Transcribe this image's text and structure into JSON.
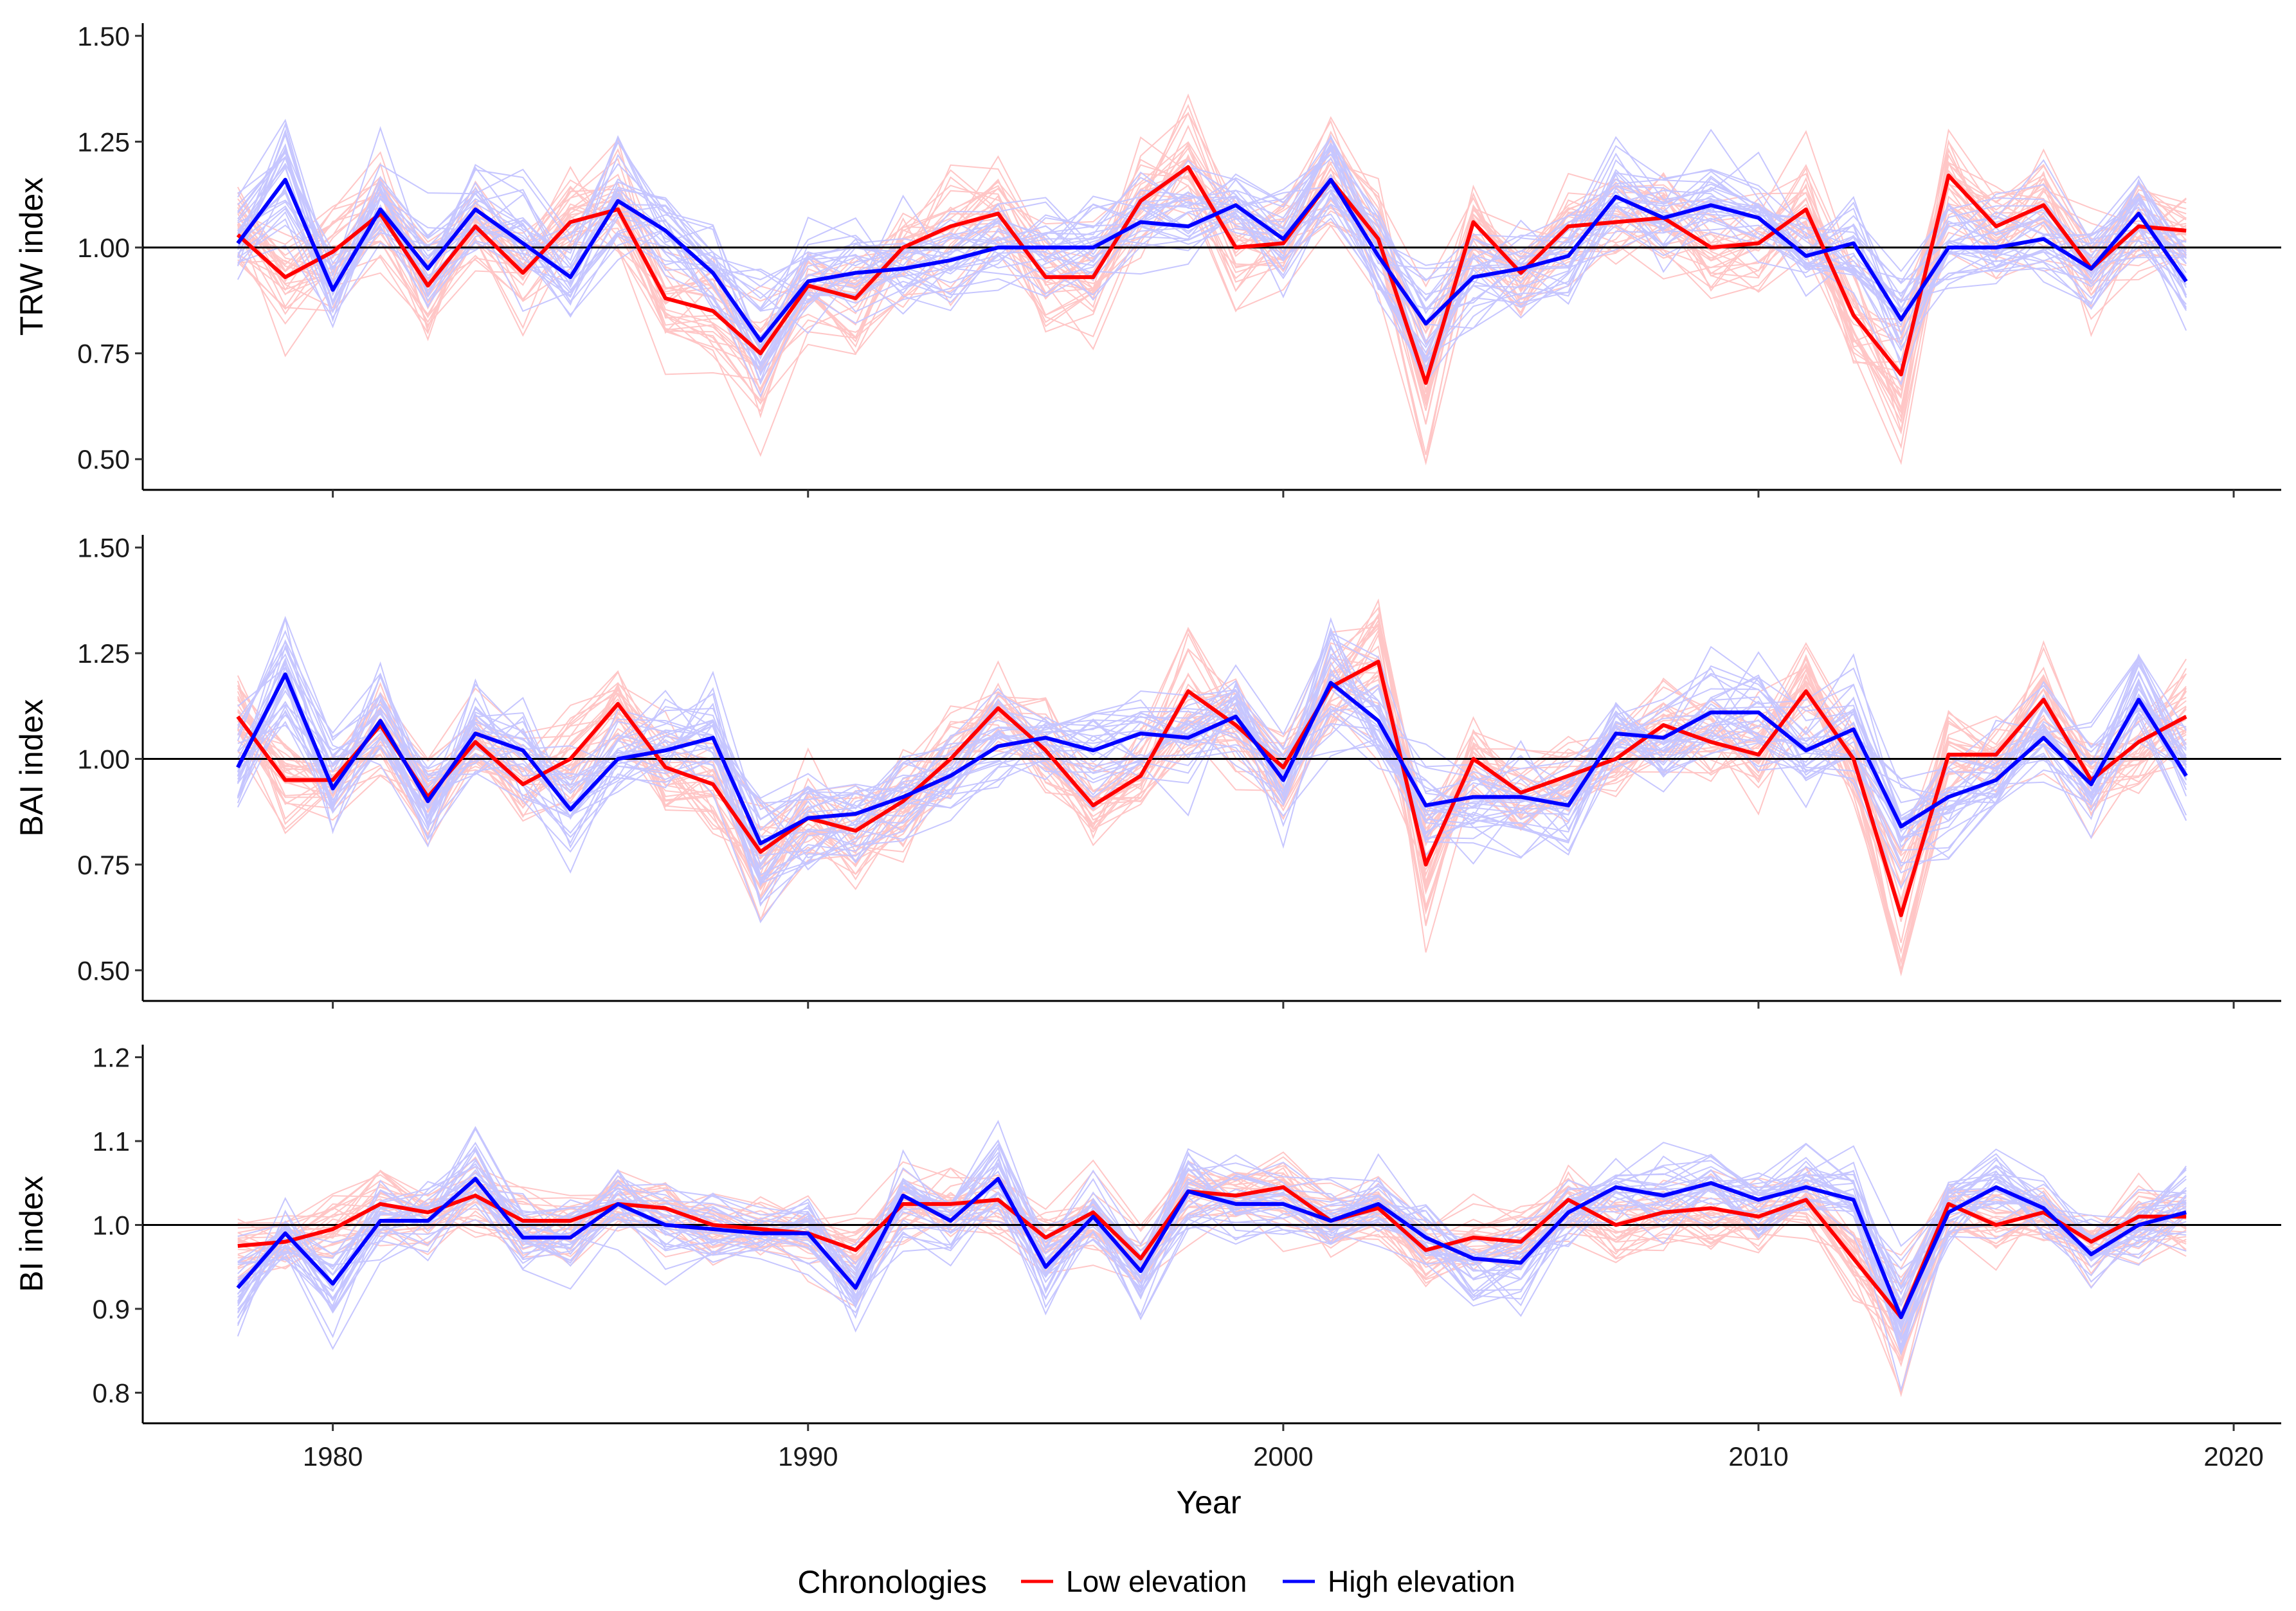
{
  "chart_data": {
    "type": "line",
    "xlabel": "Year",
    "x_ticks": [
      1980,
      1990,
      2000,
      2010,
      2020
    ],
    "xlim": [
      1976,
      2021
    ],
    "legend": {
      "title": "Chronologies",
      "position": "bottom",
      "entries": [
        {
          "name": "Low elevation",
          "color": "#ff0000"
        },
        {
          "name": "High elevation",
          "color": "#0000ff"
        }
      ]
    },
    "reference_line": 1.0,
    "years": [
      1978,
      1979,
      1980,
      1981,
      1982,
      1983,
      1984,
      1985,
      1986,
      1987,
      1988,
      1989,
      1990,
      1991,
      1992,
      1993,
      1994,
      1995,
      1996,
      1997,
      1998,
      1999,
      2000,
      2001,
      2002,
      2003,
      2004,
      2005,
      2006,
      2007,
      2008,
      2009,
      2010,
      2011,
      2012,
      2013,
      2014,
      2015,
      2016,
      2017,
      2018,
      2019
    ],
    "panels": [
      {
        "ylabel": "TRW index",
        "ylim": [
          0.47,
          1.53
        ],
        "y_ticks": [
          "0.50",
          "0.75",
          "1.00",
          "1.25",
          "1.50"
        ],
        "series": [
          {
            "name": "Low elevation",
            "color": "#ff0000",
            "values": [
              1.03,
              0.93,
              0.99,
              1.08,
              0.91,
              1.05,
              0.94,
              1.06,
              1.09,
              0.88,
              0.85,
              0.75,
              0.91,
              0.88,
              1.0,
              1.05,
              1.08,
              0.93,
              0.93,
              1.11,
              1.19,
              1.0,
              1.01,
              1.16,
              1.02,
              0.68,
              1.06,
              0.94,
              1.05,
              1.06,
              1.07,
              1.0,
              1.01,
              1.09,
              0.84,
              0.7,
              1.17,
              1.05,
              1.1,
              0.95,
              1.05,
              1.04
            ]
          },
          {
            "name": "High elevation",
            "color": "#0000ff",
            "values": [
              1.01,
              1.16,
              0.9,
              1.09,
              0.95,
              1.09,
              1.01,
              0.93,
              1.11,
              1.04,
              0.94,
              0.78,
              0.92,
              0.94,
              0.95,
              0.97,
              1.0,
              1.0,
              1.0,
              1.06,
              1.05,
              1.1,
              1.02,
              1.16,
              0.98,
              0.82,
              0.93,
              0.95,
              0.98,
              1.12,
              1.07,
              1.1,
              1.07,
              0.98,
              1.01,
              0.83,
              1.0,
              1.0,
              1.02,
              0.95,
              1.08,
              0.92
            ]
          }
        ]
      },
      {
        "ylabel": "BAI index",
        "ylim": [
          0.47,
          1.53
        ],
        "y_ticks": [
          "0.50",
          "0.75",
          "1.00",
          "1.25",
          "1.50"
        ],
        "series": [
          {
            "name": "Low elevation",
            "color": "#ff0000",
            "values": [
              1.1,
              0.95,
              0.95,
              1.08,
              0.91,
              1.04,
              0.94,
              1.0,
              1.13,
              0.98,
              0.94,
              0.78,
              0.86,
              0.83,
              0.9,
              1.0,
              1.12,
              1.02,
              0.89,
              0.96,
              1.16,
              1.08,
              0.98,
              1.17,
              1.23,
              0.75,
              1.0,
              0.92,
              0.96,
              1.0,
              1.08,
              1.04,
              1.01,
              1.16,
              1.0,
              0.63,
              1.01,
              1.01,
              1.14,
              0.95,
              1.04,
              1.1
            ]
          },
          {
            "name": "High elevation",
            "color": "#0000ff",
            "values": [
              0.98,
              1.2,
              0.93,
              1.09,
              0.9,
              1.06,
              1.02,
              0.88,
              1.0,
              1.02,
              1.05,
              0.8,
              0.86,
              0.87,
              0.91,
              0.96,
              1.03,
              1.05,
              1.02,
              1.06,
              1.05,
              1.1,
              0.95,
              1.18,
              1.09,
              0.89,
              0.91,
              0.91,
              0.89,
              1.06,
              1.05,
              1.11,
              1.11,
              1.02,
              1.07,
              0.84,
              0.91,
              0.95,
              1.05,
              0.94,
              1.14,
              0.96
            ]
          }
        ]
      },
      {
        "ylabel": "BI index",
        "ylim": [
          0.785,
          1.215
        ],
        "y_ticks": [
          "0.8",
          "0.9",
          "1.0",
          "1.1",
          "1.2"
        ],
        "series": [
          {
            "name": "Low elevation",
            "color": "#ff0000",
            "values": [
              0.975,
              0.98,
              0.995,
              1.025,
              1.015,
              1.035,
              1.005,
              1.005,
              1.025,
              1.02,
              1.0,
              0.995,
              0.99,
              0.97,
              1.025,
              1.025,
              1.03,
              0.985,
              1.015,
              0.96,
              1.04,
              1.035,
              1.045,
              1.005,
              1.02,
              0.97,
              0.985,
              0.98,
              1.03,
              1.0,
              1.015,
              1.02,
              1.01,
              1.03,
              0.96,
              0.89,
              1.025,
              1.0,
              1.015,
              0.98,
              1.01,
              1.01
            ]
          },
          {
            "name": "High elevation",
            "color": "#0000ff",
            "values": [
              0.925,
              0.99,
              0.93,
              1.005,
              1.005,
              1.055,
              0.985,
              0.985,
              1.025,
              1.0,
              0.995,
              0.99,
              0.99,
              0.925,
              1.035,
              1.005,
              1.055,
              0.95,
              1.01,
              0.945,
              1.04,
              1.025,
              1.025,
              1.005,
              1.025,
              0.985,
              0.96,
              0.955,
              1.015,
              1.045,
              1.035,
              1.05,
              1.03,
              1.045,
              1.03,
              0.89,
              1.015,
              1.045,
              1.02,
              0.965,
              1.0,
              1.015
            ]
          }
        ]
      }
    ]
  }
}
